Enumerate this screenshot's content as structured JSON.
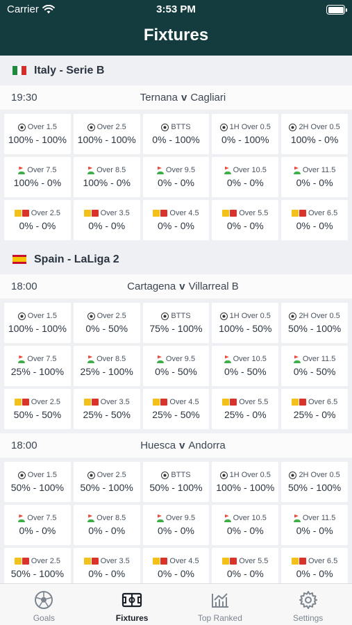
{
  "status_bar": {
    "carrier": "Carrier",
    "time": "3:53 PM"
  },
  "nav": {
    "title": "Fixtures"
  },
  "icons": {
    "wifi": "wifi-icon",
    "battery": "battery-icon",
    "ball": "football-icon",
    "corner": "corner-flag-icon",
    "cards": "cards-icon"
  },
  "leagues": [
    {
      "name": "Italy - Serie B",
      "flag": "italy-flag",
      "fixtures": [
        {
          "time": "19:30",
          "home": "Ternana",
          "v": "v",
          "away": "Cagliari",
          "rows": [
            [
              {
                "icon": "ball",
                "label": "Over 1.5",
                "value": "100% - 100%"
              },
              {
                "icon": "ball",
                "label": "Over 2.5",
                "value": "100% - 100%"
              },
              {
                "icon": "ball",
                "label": "BTTS",
                "value": "0% - 100%"
              },
              {
                "icon": "ball",
                "label": "1H Over 0.5",
                "value": "0% - 100%"
              },
              {
                "icon": "ball",
                "label": "2H Over 0.5",
                "value": "100% - 0%"
              }
            ],
            [
              {
                "icon": "corner",
                "label": "Over 7.5",
                "value": "100% - 0%"
              },
              {
                "icon": "corner",
                "label": "Over 8.5",
                "value": "100% - 0%"
              },
              {
                "icon": "corner",
                "label": "Over 9.5",
                "value": "0% - 0%"
              },
              {
                "icon": "corner",
                "label": "Over 10.5",
                "value": "0% - 0%"
              },
              {
                "icon": "corner",
                "label": "Over 11.5",
                "value": "0% - 0%"
              }
            ],
            [
              {
                "icon": "cards",
                "label": "Over 2.5",
                "value": "0% - 0%"
              },
              {
                "icon": "cards",
                "label": "Over 3.5",
                "value": "0% - 0%"
              },
              {
                "icon": "cards",
                "label": "Over 4.5",
                "value": "0% - 0%"
              },
              {
                "icon": "cards",
                "label": "Over 5.5",
                "value": "0% - 0%"
              },
              {
                "icon": "cards",
                "label": "Over 6.5",
                "value": "0% - 0%"
              }
            ]
          ]
        }
      ]
    },
    {
      "name": "Spain - LaLiga 2",
      "flag": "spain-flag",
      "fixtures": [
        {
          "time": "18:00",
          "home": "Cartagena",
          "v": "v",
          "away": "Villarreal B",
          "rows": [
            [
              {
                "icon": "ball",
                "label": "Over 1.5",
                "value": "100% - 100%"
              },
              {
                "icon": "ball",
                "label": "Over 2.5",
                "value": "0% - 50%"
              },
              {
                "icon": "ball",
                "label": "BTTS",
                "value": "75% - 100%"
              },
              {
                "icon": "ball",
                "label": "1H Over 0.5",
                "value": "100% - 50%"
              },
              {
                "icon": "ball",
                "label": "2H Over 0.5",
                "value": "50% - 100%"
              }
            ],
            [
              {
                "icon": "corner",
                "label": "Over 7.5",
                "value": "25% - 100%"
              },
              {
                "icon": "corner",
                "label": "Over 8.5",
                "value": "25% - 100%"
              },
              {
                "icon": "corner",
                "label": "Over 9.5",
                "value": "0% - 50%"
              },
              {
                "icon": "corner",
                "label": "Over 10.5",
                "value": "0% - 50%"
              },
              {
                "icon": "corner",
                "label": "Over 11.5",
                "value": "0% - 50%"
              }
            ],
            [
              {
                "icon": "cards",
                "label": "Over 2.5",
                "value": "50% - 50%"
              },
              {
                "icon": "cards",
                "label": "Over 3.5",
                "value": "25% - 50%"
              },
              {
                "icon": "cards",
                "label": "Over 4.5",
                "value": "25% - 50%"
              },
              {
                "icon": "cards",
                "label": "Over 5.5",
                "value": "25% - 0%"
              },
              {
                "icon": "cards",
                "label": "Over 6.5",
                "value": "25% - 0%"
              }
            ]
          ]
        },
        {
          "time": "18:00",
          "home": "Huesca",
          "v": "v",
          "away": "Andorra",
          "rows": [
            [
              {
                "icon": "ball",
                "label": "Over 1.5",
                "value": "50% - 100%"
              },
              {
                "icon": "ball",
                "label": "Over 2.5",
                "value": "50% - 100%"
              },
              {
                "icon": "ball",
                "label": "BTTS",
                "value": "50% - 100%"
              },
              {
                "icon": "ball",
                "label": "1H Over 0.5",
                "value": "100% - 100%"
              },
              {
                "icon": "ball",
                "label": "2H Over 0.5",
                "value": "50% - 100%"
              }
            ],
            [
              {
                "icon": "corner",
                "label": "Over 7.5",
                "value": "0% - 0%"
              },
              {
                "icon": "corner",
                "label": "Over 8.5",
                "value": "0% - 0%"
              },
              {
                "icon": "corner",
                "label": "Over 9.5",
                "value": "0% - 0%"
              },
              {
                "icon": "corner",
                "label": "Over 10.5",
                "value": "0% - 0%"
              },
              {
                "icon": "corner",
                "label": "Over 11.5",
                "value": "0% - 0%"
              }
            ],
            [
              {
                "icon": "cards",
                "label": "Over 2.5",
                "value": "50% - 100%"
              },
              {
                "icon": "cards",
                "label": "Over 3.5",
                "value": "0% - 0%"
              },
              {
                "icon": "cards",
                "label": "Over 4.5",
                "value": "0% - 0%"
              },
              {
                "icon": "cards",
                "label": "Over 5.5",
                "value": "0% - 0%"
              },
              {
                "icon": "cards",
                "label": "Over 6.5",
                "value": "0% - 0%"
              }
            ]
          ]
        }
      ]
    }
  ],
  "tabbar": [
    {
      "label": "Goals",
      "icon": "football-icon",
      "active": false
    },
    {
      "label": "Fixtures",
      "icon": "pitch-icon",
      "active": true
    },
    {
      "label": "Top Ranked",
      "icon": "trend-chart-icon",
      "active": false
    },
    {
      "label": "Settings",
      "icon": "gear-icon",
      "active": false
    }
  ],
  "colors": {
    "header_bg": "#143b3e",
    "active_tab": "#1a1f26",
    "inactive_tab": "#7d858f"
  }
}
